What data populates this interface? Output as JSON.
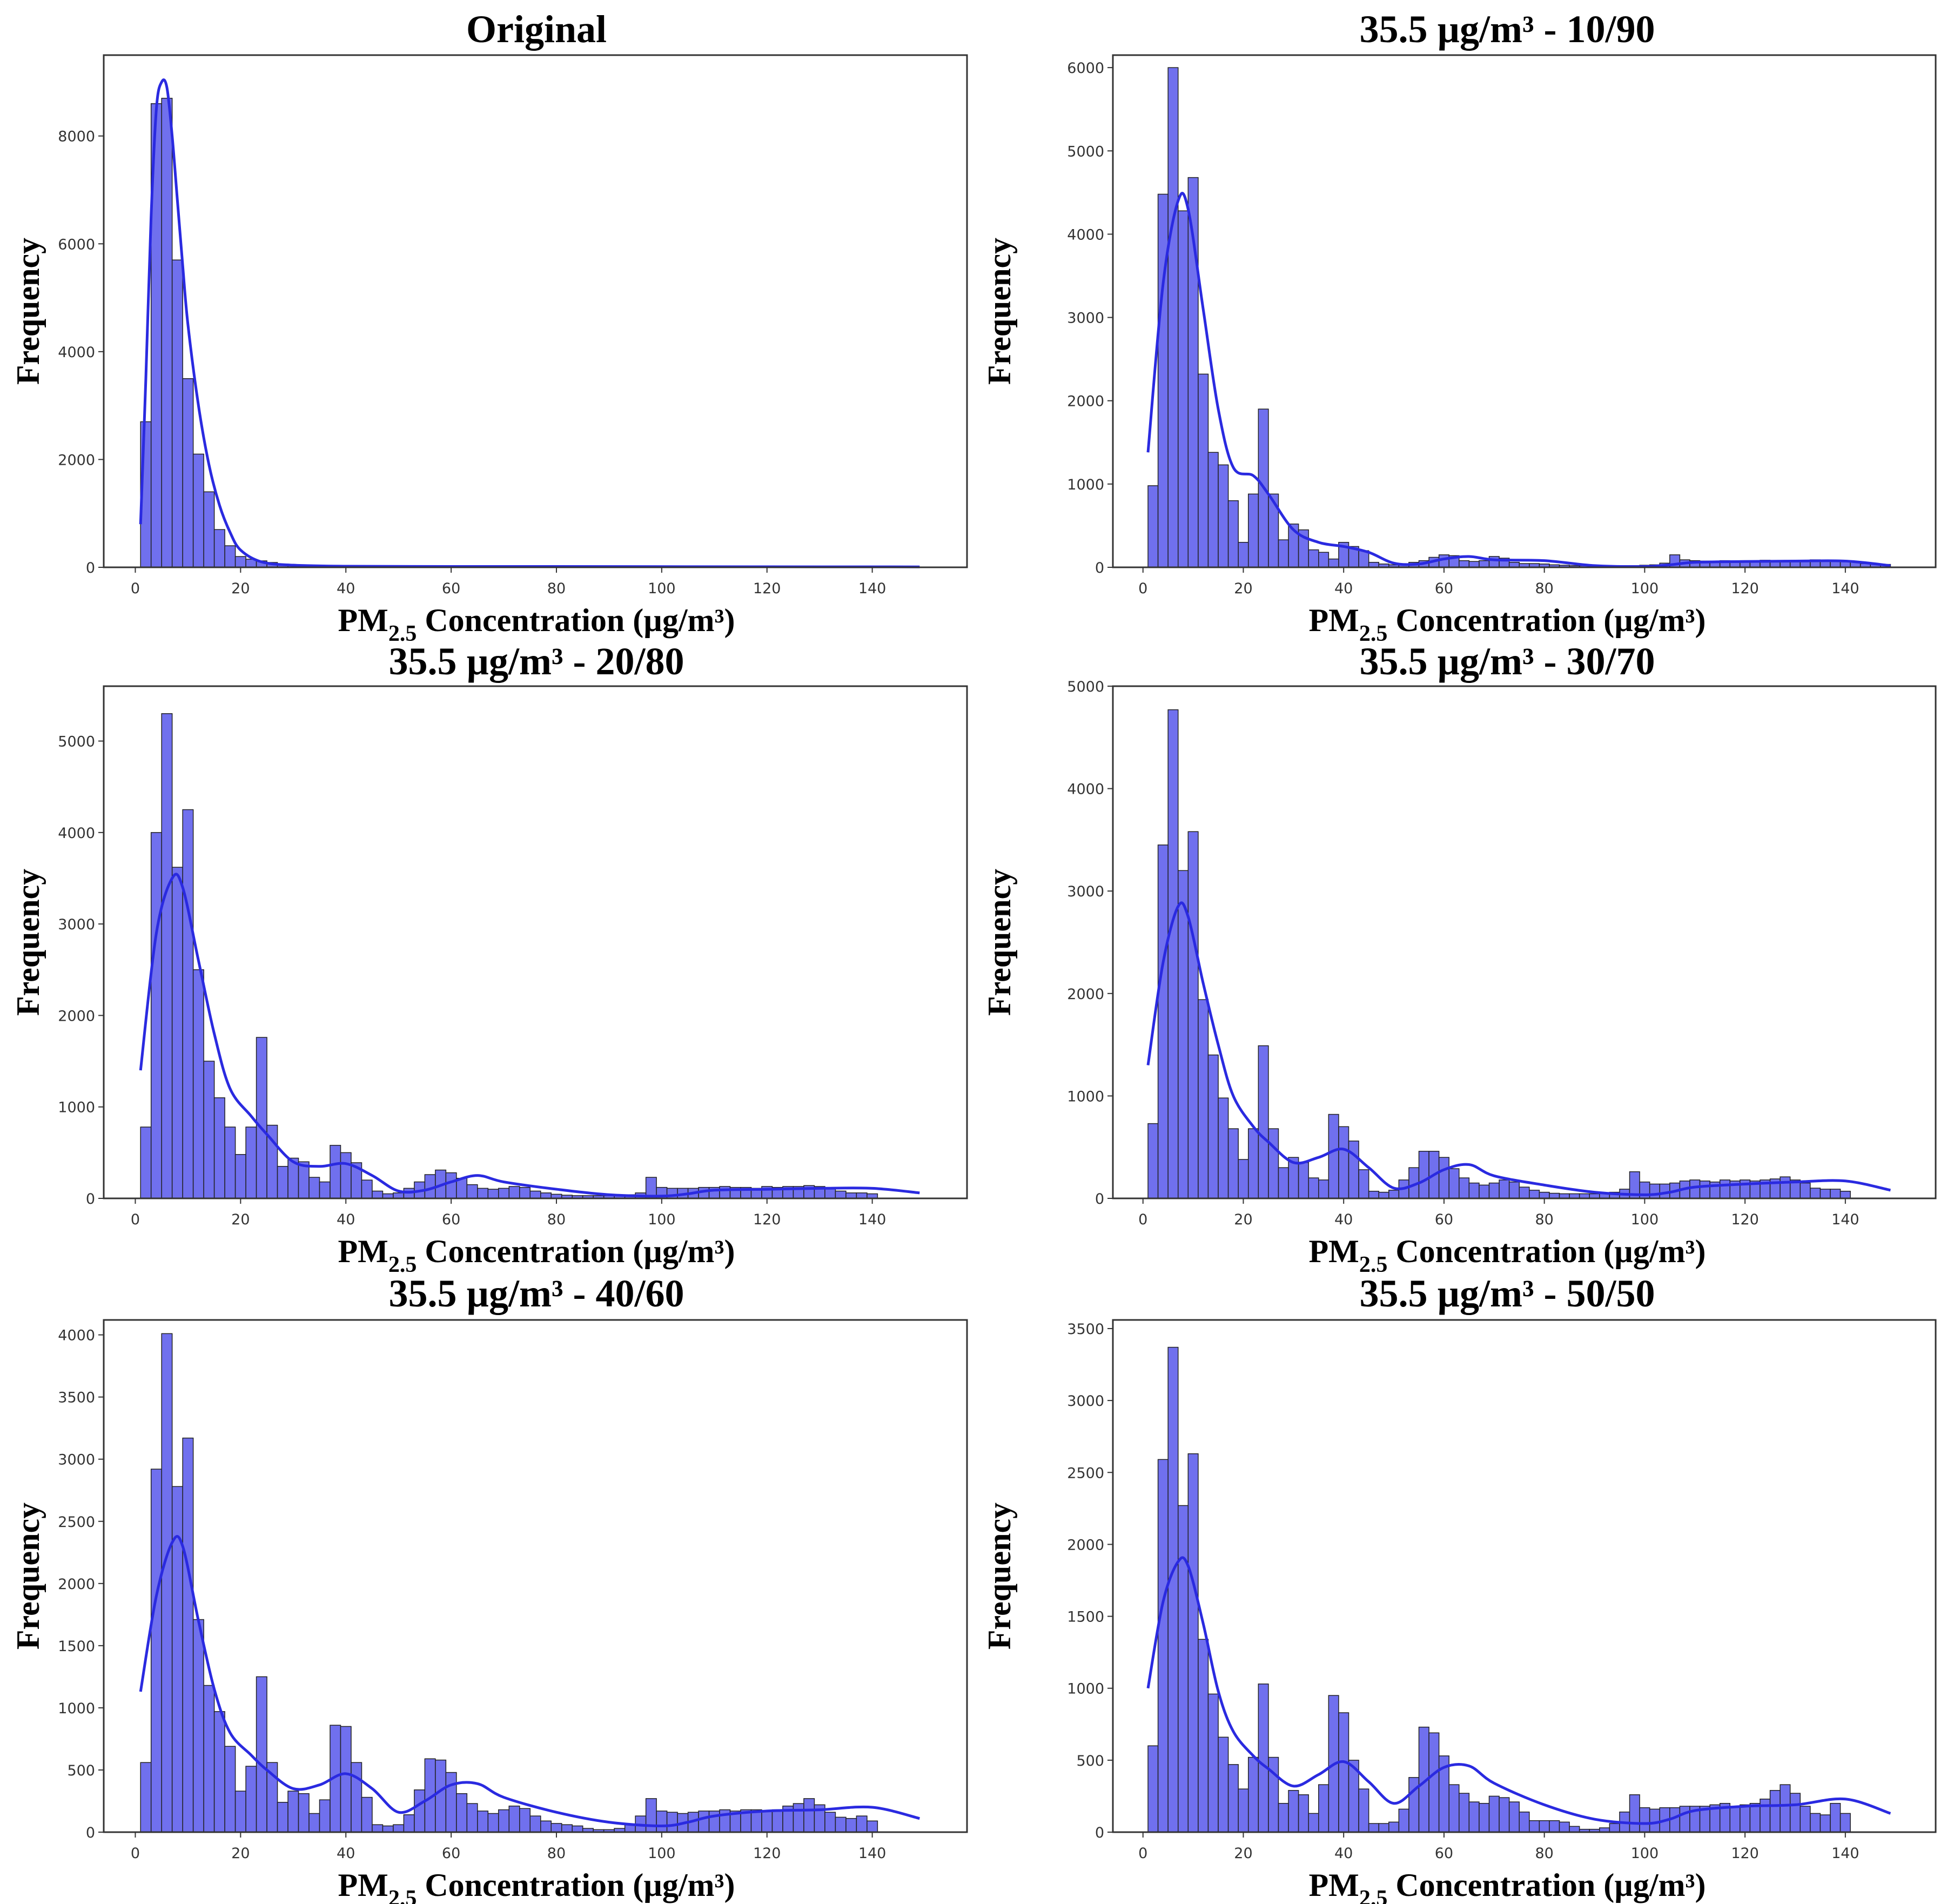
{
  "figure": {
    "xlabel_main": "PM",
    "xlabel_sub": "2.5",
    "xlabel_rest": " Concentration (µg/m³)",
    "ylabel": "Frequency"
  },
  "chart_data": [
    {
      "type": "histogram",
      "title": "Original",
      "xlim": [
        -6,
        158
      ],
      "ylim": [
        0,
        9500
      ],
      "xticks": [
        0,
        20,
        40,
        60,
        80,
        100,
        120,
        140
      ],
      "yticks": [
        0,
        2000,
        4000,
        6000,
        8000
      ],
      "bin_start": 1,
      "bin_width": 2,
      "values": [
        2700,
        8600,
        8700,
        5700,
        3500,
        2100,
        1400,
        700,
        400,
        200,
        150,
        120,
        90,
        60,
        40,
        30,
        25,
        20,
        15,
        12,
        10,
        8,
        6,
        5,
        4,
        4,
        3,
        3,
        3,
        3,
        3,
        3,
        2,
        2,
        2,
        2,
        2,
        2,
        2,
        2,
        2,
        2,
        2,
        2,
        2,
        2,
        2,
        2,
        2,
        2,
        2,
        2,
        2,
        2,
        2,
        2,
        2,
        2,
        2,
        2,
        2,
        2,
        2,
        2,
        2,
        2,
        2,
        2,
        2,
        2,
        2,
        2,
        2,
        2
      ],
      "kde": {
        "x": [
          1,
          2,
          3,
          4,
          5,
          6,
          7,
          8,
          9,
          10,
          12,
          14,
          16,
          18,
          20,
          24,
          30,
          40,
          60,
          80,
          100,
          120,
          149
        ],
        "y": [
          800,
          3500,
          6500,
          8500,
          9000,
          8900,
          8000,
          6800,
          5600,
          4500,
          3000,
          1900,
          1150,
          650,
          320,
          100,
          40,
          20,
          15,
          15,
          12,
          10,
          8
        ]
      }
    },
    {
      "type": "histogram",
      "title": "35.5 µg/m³ - 10/90",
      "xlim": [
        -6,
        158
      ],
      "ylim": [
        0,
        6150
      ],
      "xticks": [
        0,
        20,
        40,
        60,
        80,
        100,
        120,
        140
      ],
      "yticks": [
        0,
        1000,
        2000,
        3000,
        4000,
        5000,
        6000
      ],
      "bin_start": 1,
      "bin_width": 2,
      "values": [
        980,
        4480,
        6000,
        4280,
        4680,
        2320,
        1380,
        1230,
        800,
        300,
        880,
        1900,
        880,
        330,
        520,
        450,
        210,
        180,
        100,
        300,
        250,
        200,
        60,
        40,
        30,
        35,
        60,
        80,
        120,
        150,
        140,
        80,
        70,
        80,
        130,
        110,
        60,
        45,
        45,
        40,
        30,
        25,
        20,
        20,
        20,
        20,
        20,
        20,
        20,
        25,
        30,
        50,
        150,
        90,
        80,
        75,
        75,
        80,
        75,
        80,
        75,
        85,
        75,
        80,
        80,
        80,
        90,
        85,
        80,
        75,
        60,
        45,
        40,
        35
      ],
      "kde": {
        "x": [
          1,
          4,
          7,
          9,
          12,
          15,
          18,
          22,
          25,
          30,
          35,
          40,
          45,
          50,
          55,
          60,
          65,
          70,
          80,
          90,
          100,
          105,
          110,
          120,
          130,
          140,
          149
        ],
        "y": [
          1380,
          3400,
          4400,
          4300,
          3100,
          1900,
          1200,
          1100,
          880,
          450,
          300,
          250,
          180,
          50,
          40,
          100,
          130,
          90,
          80,
          20,
          10,
          30,
          60,
          70,
          75,
          75,
          20
        ]
      }
    },
    {
      "type": "histogram",
      "title": "35.5 µg/m³ - 20/80",
      "xlim": [
        -6,
        158
      ],
      "ylim": [
        0,
        5600
      ],
      "xticks": [
        0,
        20,
        40,
        60,
        80,
        100,
        120,
        140
      ],
      "yticks": [
        0,
        1000,
        2000,
        3000,
        4000,
        5000
      ],
      "bin_start": 1,
      "bin_width": 2,
      "values": [
        780,
        4000,
        5300,
        3620,
        4250,
        2500,
        1500,
        1100,
        780,
        480,
        780,
        1760,
        800,
        350,
        440,
        400,
        230,
        180,
        580,
        500,
        390,
        200,
        80,
        50,
        60,
        110,
        180,
        260,
        310,
        280,
        220,
        150,
        110,
        100,
        110,
        130,
        120,
        80,
        60,
        45,
        35,
        30,
        30,
        30,
        30,
        35,
        40,
        60,
        230,
        120,
        110,
        110,
        110,
        120,
        120,
        130,
        120,
        120,
        110,
        130,
        120,
        130,
        130,
        140,
        130,
        110,
        80,
        60,
        60,
        50
      ],
      "kde": {
        "x": [
          1,
          4,
          7,
          9,
          12,
          15,
          18,
          22,
          25,
          30,
          35,
          40,
          45,
          50,
          55,
          60,
          65,
          70,
          80,
          90,
          100,
          105,
          110,
          120,
          130,
          140,
          149
        ],
        "y": [
          1400,
          2900,
          3500,
          3400,
          2600,
          1800,
          1200,
          900,
          700,
          400,
          350,
          380,
          250,
          80,
          90,
          180,
          250,
          180,
          100,
          40,
          25,
          50,
          90,
          100,
          110,
          110,
          60
        ]
      }
    },
    {
      "type": "histogram",
      "title": "35.5 µg/m³ - 30/70",
      "xlim": [
        -6,
        158
      ],
      "ylim": [
        0,
        5000
      ],
      "xticks": [
        0,
        20,
        40,
        60,
        80,
        100,
        120,
        140
      ],
      "yticks": [
        0,
        1000,
        2000,
        3000,
        4000,
        5000
      ],
      "bin_start": 1,
      "bin_width": 2,
      "values": [
        730,
        3450,
        4770,
        3200,
        3580,
        1940,
        1400,
        980,
        680,
        380,
        680,
        1490,
        680,
        300,
        400,
        350,
        200,
        180,
        820,
        700,
        560,
        280,
        70,
        60,
        80,
        180,
        300,
        460,
        460,
        400,
        290,
        200,
        150,
        130,
        150,
        180,
        160,
        110,
        80,
        60,
        50,
        45,
        45,
        45,
        45,
        50,
        60,
        90,
        260,
        160,
        140,
        140,
        150,
        170,
        180,
        170,
        160,
        180,
        170,
        180,
        170,
        180,
        190,
        210,
        180,
        150,
        100,
        90,
        90,
        70
      ],
      "kde": {
        "x": [
          1,
          4,
          7,
          9,
          12,
          15,
          18,
          22,
          25,
          30,
          35,
          40,
          45,
          50,
          55,
          60,
          65,
          70,
          80,
          90,
          100,
          105,
          110,
          120,
          130,
          140,
          149
        ],
        "y": [
          1300,
          2300,
          2850,
          2750,
          2100,
          1500,
          1000,
          700,
          550,
          350,
          400,
          480,
          300,
          100,
          150,
          280,
          330,
          220,
          130,
          60,
          35,
          60,
          110,
          140,
          160,
          170,
          80
        ]
      }
    },
    {
      "type": "histogram",
      "title": "35.5 µg/m³ - 40/60",
      "xlim": [
        -6,
        158
      ],
      "ylim": [
        0,
        4120
      ],
      "xticks": [
        0,
        20,
        40,
        60,
        80,
        100,
        120,
        140
      ],
      "yticks": [
        0,
        500,
        1000,
        1500,
        2000,
        2500,
        3000,
        3500,
        4000
      ],
      "bin_start": 1,
      "bin_width": 2,
      "values": [
        560,
        2920,
        4010,
        2780,
        3170,
        1710,
        1180,
        970,
        690,
        330,
        530,
        1250,
        560,
        240,
        330,
        310,
        150,
        260,
        860,
        850,
        560,
        280,
        60,
        50,
        60,
        140,
        340,
        590,
        580,
        480,
        310,
        230,
        170,
        150,
        180,
        210,
        190,
        130,
        90,
        70,
        60,
        50,
        30,
        20,
        20,
        30,
        60,
        130,
        270,
        170,
        160,
        150,
        160,
        170,
        170,
        180,
        170,
        180,
        180,
        170,
        180,
        210,
        230,
        270,
        220,
        160,
        120,
        110,
        130,
        90
      ],
      "kde": {
        "x": [
          1,
          4,
          7,
          9,
          12,
          15,
          18,
          22,
          25,
          30,
          35,
          40,
          45,
          50,
          55,
          60,
          65,
          70,
          80,
          90,
          100,
          105,
          110,
          120,
          130,
          140,
          149
        ],
        "y": [
          1130,
          1900,
          2330,
          2300,
          1700,
          1150,
          800,
          620,
          500,
          350,
          380,
          470,
          350,
          160,
          250,
          380,
          390,
          280,
          160,
          80,
          50,
          80,
          130,
          170,
          180,
          200,
          110
        ]
      }
    },
    {
      "type": "histogram",
      "title": "35.5 µg/m³ - 50/50",
      "xlim": [
        -6,
        158
      ],
      "ylim": [
        0,
        3560
      ],
      "xticks": [
        0,
        20,
        40,
        60,
        80,
        100,
        120,
        140
      ],
      "yticks": [
        0,
        500,
        1000,
        1500,
        2000,
        2500,
        3000,
        3500
      ],
      "bin_start": 1,
      "bin_width": 2,
      "values": [
        600,
        2590,
        3370,
        2270,
        2630,
        1340,
        960,
        660,
        470,
        300,
        520,
        1030,
        520,
        200,
        290,
        260,
        130,
        330,
        950,
        830,
        500,
        300,
        60,
        60,
        70,
        160,
        380,
        730,
        690,
        530,
        330,
        270,
        210,
        200,
        250,
        240,
        210,
        140,
        80,
        80,
        80,
        70,
        40,
        20,
        20,
        30,
        60,
        140,
        260,
        170,
        160,
        170,
        170,
        180,
        180,
        180,
        190,
        200,
        180,
        190,
        200,
        230,
        290,
        330,
        270,
        180,
        130,
        120,
        200,
        130
      ],
      "kde": {
        "x": [
          1,
          4,
          7,
          9,
          12,
          15,
          18,
          22,
          25,
          30,
          35,
          40,
          45,
          50,
          55,
          60,
          65,
          70,
          80,
          90,
          100,
          105,
          110,
          120,
          130,
          140,
          149
        ],
        "y": [
          1000,
          1600,
          1880,
          1850,
          1450,
          980,
          700,
          530,
          440,
          320,
          400,
          490,
          350,
          200,
          320,
          450,
          460,
          340,
          190,
          90,
          60,
          90,
          150,
          180,
          190,
          230,
          130
        ]
      }
    }
  ]
}
